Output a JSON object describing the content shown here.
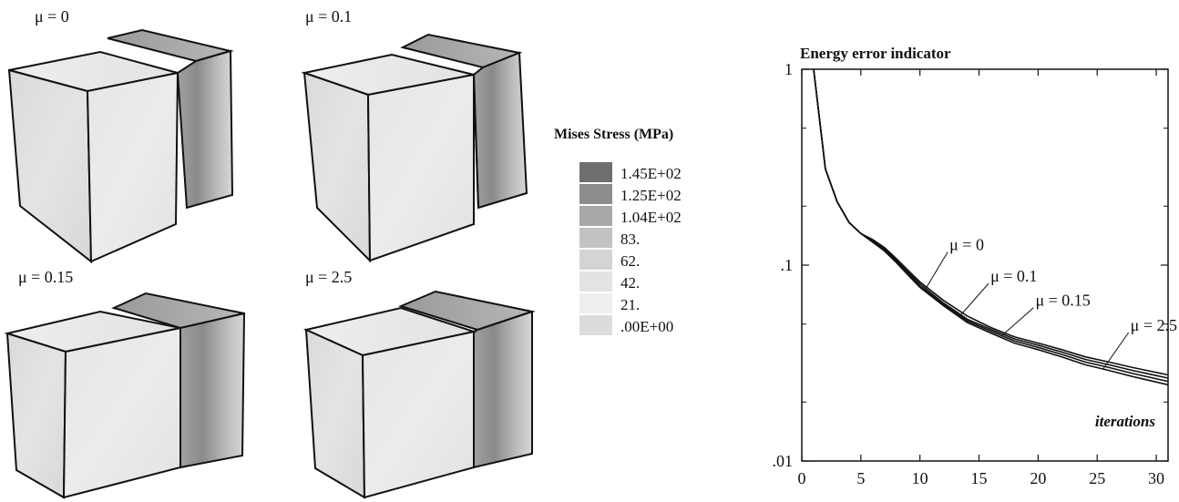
{
  "panels": [
    {
      "label": "μ = 0"
    },
    {
      "label": "μ = 0.1"
    },
    {
      "label": "μ = 0.15"
    },
    {
      "label": "μ = 2.5"
    }
  ],
  "legend": {
    "title": "Mises Stress (MPa)",
    "entries": [
      {
        "label": "1.45E+02",
        "color": "#6e6e6e"
      },
      {
        "label": "1.25E+02",
        "color": "#8c8c8c"
      },
      {
        "label": "1.04E+02",
        "color": "#a8a8a8"
      },
      {
        "label": "83.",
        "color": "#c2c2c2"
      },
      {
        "label": "62.",
        "color": "#d4d4d4"
      },
      {
        "label": "42.",
        "color": "#e3e3e3"
      },
      {
        "label": "21.",
        "color": "#efefef"
      },
      {
        "label": ".00E+00",
        "color": "#dcdcdc"
      }
    ]
  },
  "chart_data": {
    "type": "line",
    "title": "Energy error indicator",
    "xlabel": "iterations",
    "ylabel": "",
    "x_scale": "linear",
    "y_scale": "log",
    "xlim": [
      0,
      31
    ],
    "ylim": [
      0.01,
      1
    ],
    "x_ticks": [
      "0",
      "5",
      "10",
      "15",
      "20",
      "25",
      "30"
    ],
    "y_ticks": [
      ".01",
      ".1",
      "1"
    ],
    "grid": false,
    "series": [
      {
        "name": "μ = 0",
        "x": [
          1,
          2,
          3,
          4,
          5,
          6,
          7,
          8,
          9,
          10,
          12,
          14,
          16,
          18,
          20,
          22,
          24,
          26,
          28,
          31
        ],
        "y": [
          1.0,
          0.31,
          0.21,
          0.165,
          0.145,
          0.135,
          0.123,
          0.108,
          0.094,
          0.082,
          0.066,
          0.055,
          0.048,
          0.043,
          0.04,
          0.037,
          0.034,
          0.032,
          0.03,
          0.0275
        ]
      },
      {
        "name": "μ = 0.1",
        "x": [
          1,
          2,
          3,
          4,
          5,
          6,
          7,
          8,
          9,
          10,
          12,
          14,
          16,
          18,
          20,
          22,
          24,
          26,
          28,
          31
        ],
        "y": [
          1.0,
          0.31,
          0.21,
          0.165,
          0.145,
          0.133,
          0.121,
          0.106,
          0.092,
          0.08,
          0.064,
          0.053,
          0.047,
          0.042,
          0.039,
          0.036,
          0.033,
          0.031,
          0.029,
          0.0265
        ]
      },
      {
        "name": "μ = 0.15",
        "x": [
          1,
          2,
          3,
          4,
          5,
          6,
          7,
          8,
          9,
          10,
          12,
          14,
          16,
          18,
          20,
          22,
          24,
          26,
          28,
          31
        ],
        "y": [
          1.0,
          0.31,
          0.21,
          0.165,
          0.145,
          0.132,
          0.119,
          0.104,
          0.09,
          0.078,
          0.063,
          0.052,
          0.046,
          0.041,
          0.038,
          0.035,
          0.032,
          0.03,
          0.028,
          0.0255
        ]
      },
      {
        "name": "μ = 2.5",
        "x": [
          1,
          2,
          3,
          4,
          5,
          6,
          7,
          8,
          9,
          10,
          12,
          14,
          16,
          18,
          20,
          22,
          24,
          26,
          28,
          31
        ],
        "y": [
          1.0,
          0.31,
          0.21,
          0.165,
          0.145,
          0.131,
          0.118,
          0.103,
          0.089,
          0.077,
          0.062,
          0.051,
          0.045,
          0.04,
          0.037,
          0.034,
          0.031,
          0.029,
          0.027,
          0.0245
        ]
      }
    ],
    "annotations": [
      {
        "text": "μ = 0",
        "at_x": 10.5,
        "at_y": 0.076
      },
      {
        "text": "μ = 0.1",
        "at_x": 13.5,
        "at_y": 0.056
      },
      {
        "text": "μ = 0.15",
        "at_x": 17,
        "at_y": 0.044
      },
      {
        "text": "μ = 2.5",
        "at_x": 25.5,
        "at_y": 0.0295
      }
    ]
  }
}
